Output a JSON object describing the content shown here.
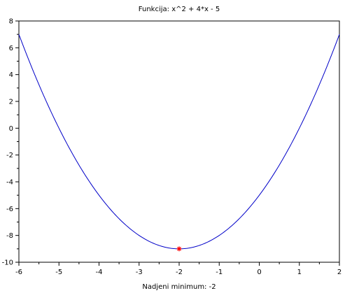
{
  "chart_data": {
    "type": "line",
    "title": "Funkcija: x^2 + 4*x - 5",
    "xlabel": "Nadjeni minimum: -2",
    "ylabel": "",
    "xlim": [
      -6,
      2
    ],
    "ylim": [
      -10,
      8
    ],
    "xticks": [
      -6,
      -5,
      -4,
      -3,
      -2,
      -1,
      0,
      1,
      2
    ],
    "yticks": [
      -10,
      -8,
      -6,
      -4,
      -2,
      0,
      2,
      4,
      6,
      8
    ],
    "grid": false,
    "legend": "none",
    "series": [
      {
        "function": "x^2 + 4*x - 5",
        "color": "#0000c8",
        "x_range": [
          -6,
          2
        ]
      }
    ],
    "marker": {
      "x": -2,
      "y": -9,
      "symbol": "asterisk",
      "color": "#ff0000"
    }
  }
}
